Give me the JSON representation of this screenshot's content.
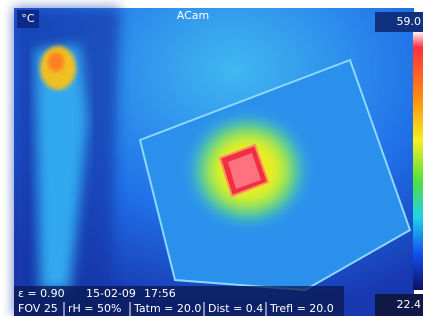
{
  "header": {
    "unit": "°C",
    "title": "ACam"
  },
  "scale": {
    "max": "59.0",
    "min": "22.4"
  },
  "status": {
    "line1": [
      "ε = 0.90",
      "15-02-09",
      "17:56"
    ],
    "line2": [
      "FOV 25",
      "rH = 50%",
      "Tatm = 20.0",
      "Dist = 0.4",
      "Trefl = 20.0"
    ]
  }
}
